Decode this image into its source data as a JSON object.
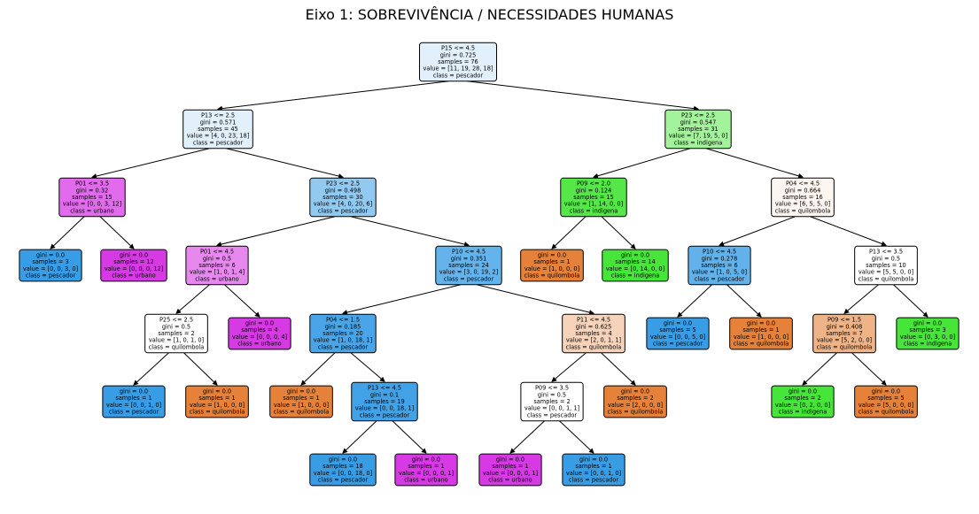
{
  "title": "Eixo 1: SOBREVIVÊNCIA / NECESSIDADES HUMANAS",
  "class_colors": {
    "pescador": "#399de5",
    "urbano": "#d739e5",
    "indigena": "#47e539",
    "quilombola": "#e58139"
  },
  "nodes": [
    {
      "id": "n0",
      "lines": [
        "P15 <= 4.5",
        "gini = 0.725",
        "samples = 76",
        "value = [11, 19, 28, 18]",
        "class = pescador"
      ],
      "class": "pescador",
      "purity": 0.15
    },
    {
      "id": "n1",
      "lines": [
        "P13 <= 2.5",
        "gini = 0.571",
        "samples = 45",
        "value = [4, 0, 23, 18]",
        "class = pescador"
      ],
      "class": "pescador",
      "purity": 0.15
    },
    {
      "id": "n2",
      "lines": [
        "P23 <= 2.5",
        "gini = 0.547",
        "samples = 31",
        "value = [7, 19, 5, 0]",
        "class = indigena"
      ],
      "class": "indigena",
      "purity": 0.5
    },
    {
      "id": "n3",
      "lines": [
        "P01 <= 3.5",
        "gini = 0.32",
        "samples = 15",
        "value = [0, 0, 3, 12]",
        "class = urbano"
      ],
      "class": "urbano",
      "purity": 0.75
    },
    {
      "id": "n4",
      "lines": [
        "P23 <= 2.5",
        "gini = 0.498",
        "samples = 30",
        "value = [4, 0, 20, 6]",
        "class = pescador"
      ],
      "class": "pescador",
      "purity": 0.55
    },
    {
      "id": "n5",
      "lines": [
        "P09 <= 2.0",
        "gini = 0.124",
        "samples = 15",
        "value = [1, 14, 0, 0]",
        "class = indigena"
      ],
      "class": "indigena",
      "purity": 0.93
    },
    {
      "id": "n6",
      "lines": [
        "P04 <= 4.5",
        "gini = 0.664",
        "samples = 16",
        "value = [6, 5, 5, 0]",
        "class = quilombola"
      ],
      "class": "quilombola",
      "purity": 0.08
    },
    {
      "id": "n7",
      "lines": [
        "gini = 0.0",
        "samples = 3",
        "value = [0, 0, 3, 0]",
        "class = pescador"
      ],
      "class": "pescador",
      "purity": 1.0
    },
    {
      "id": "n8",
      "lines": [
        "gini = 0.0",
        "samples = 12",
        "value = [0, 0, 0, 12]",
        "class = urbano"
      ],
      "class": "urbano",
      "purity": 1.0
    },
    {
      "id": "n9",
      "lines": [
        "P01 <= 4.5",
        "gini = 0.5",
        "samples = 6",
        "value = [1, 0, 1, 4]",
        "class = urbano"
      ],
      "class": "urbano",
      "purity": 0.6
    },
    {
      "id": "n10",
      "lines": [
        "P10 <= 4.5",
        "gini = 0.351",
        "samples = 24",
        "value = [3, 0, 19, 2]",
        "class = pescador"
      ],
      "class": "pescador",
      "purity": 0.78
    },
    {
      "id": "n11",
      "lines": [
        "gini = 0.0",
        "samples = 1",
        "value = [1, 0, 0, 0]",
        "class = quilombola"
      ],
      "class": "quilombola",
      "purity": 1.0
    },
    {
      "id": "n12",
      "lines": [
        "gini = 0.0",
        "samples = 14",
        "value = [0, 14, 0, 0]",
        "class = indigena"
      ],
      "class": "indigena",
      "purity": 1.0
    },
    {
      "id": "n13",
      "lines": [
        "P10 <= 4.5",
        "gini = 0.278",
        "samples = 6",
        "value = [1, 0, 5, 0]",
        "class = pescador"
      ],
      "class": "pescador",
      "purity": 0.8
    },
    {
      "id": "n14",
      "lines": [
        "P13 <= 3.5",
        "gini = 0.5",
        "samples = 10",
        "value = [5, 5, 0, 0]",
        "class = quilombola"
      ],
      "class": "quilombola",
      "purity": 0.0
    },
    {
      "id": "n15",
      "lines": [
        "P25 <= 2.5",
        "gini = 0.5",
        "samples = 2",
        "value = [1, 0, 1, 0]",
        "class = quilombola"
      ],
      "class": "quilombola",
      "purity": 0.0
    },
    {
      "id": "n16",
      "lines": [
        "gini = 0.0",
        "samples = 4",
        "value = [0, 0, 0, 4]",
        "class = urbano"
      ],
      "class": "urbano",
      "purity": 1.0
    },
    {
      "id": "n17",
      "lines": [
        "P04 <= 1.5",
        "gini = 0.185",
        "samples = 20",
        "value = [1, 0, 18, 1]",
        "class = pescador"
      ],
      "class": "pescador",
      "purity": 0.92
    },
    {
      "id": "n18",
      "lines": [
        "P11 <= 4.5",
        "gini = 0.625",
        "samples = 4",
        "value = [2, 0, 1, 1]",
        "class = quilombola"
      ],
      "class": "quilombola",
      "purity": 0.35
    },
    {
      "id": "n19",
      "lines": [
        "gini = 0.0",
        "samples = 5",
        "value = [0, 0, 5, 0]",
        "class = pescador"
      ],
      "class": "pescador",
      "purity": 1.0
    },
    {
      "id": "n20",
      "lines": [
        "gini = 0.0",
        "samples = 1",
        "value = [1, 0, 0, 0]",
        "class = quilombola"
      ],
      "class": "quilombola",
      "purity": 1.0
    },
    {
      "id": "n21",
      "lines": [
        "P09 <= 1.5",
        "gini = 0.408",
        "samples = 7",
        "value = [5, 2, 0, 0]",
        "class = quilombola"
      ],
      "class": "quilombola",
      "purity": 0.6
    },
    {
      "id": "n22",
      "lines": [
        "gini = 0.0",
        "samples = 3",
        "value = [0, 3, 0, 0]",
        "class = indigena"
      ],
      "class": "indigena",
      "purity": 1.0
    },
    {
      "id": "n23",
      "lines": [
        "gini = 0.0",
        "samples = 1",
        "value = [0, 0, 1, 0]",
        "class = pescador"
      ],
      "class": "pescador",
      "purity": 1.0
    },
    {
      "id": "n24",
      "lines": [
        "gini = 0.0",
        "samples = 1",
        "value = [1, 0, 0, 0]",
        "class = quilombola"
      ],
      "class": "quilombola",
      "purity": 1.0
    },
    {
      "id": "n25",
      "lines": [
        "gini = 0.0",
        "samples = 1",
        "value = [1, 0, 0, 0]",
        "class = quilombola"
      ],
      "class": "quilombola",
      "purity": 1.0
    },
    {
      "id": "n26",
      "lines": [
        "P13 <= 4.5",
        "gini = 0.1",
        "samples = 19",
        "value = [0, 0, 18, 1]",
        "class = pescador"
      ],
      "class": "pescador",
      "purity": 0.95
    },
    {
      "id": "n27",
      "lines": [
        "P09 <= 3.5",
        "gini = 0.5",
        "samples = 2",
        "value = [0, 0, 1, 1]",
        "class = pescador"
      ],
      "class": "pescador",
      "purity": 0.0
    },
    {
      "id": "n28",
      "lines": [
        "gini = 0.0",
        "samples = 2",
        "value = [2, 0, 0, 0]",
        "class = quilombola"
      ],
      "class": "quilombola",
      "purity": 1.0
    },
    {
      "id": "n29",
      "lines": [
        "gini = 0.0",
        "samples = 2",
        "value = [0, 2, 0, 0]",
        "class = indigena"
      ],
      "class": "indigena",
      "purity": 1.0
    },
    {
      "id": "n30",
      "lines": [
        "gini = 0.0",
        "samples = 5",
        "value = [5, 0, 0, 0]",
        "class = quilombola"
      ],
      "class": "quilombola",
      "purity": 1.0
    },
    {
      "id": "n31",
      "lines": [
        "gini = 0.0",
        "samples = 18",
        "value = [0, 0, 18, 0]",
        "class = pescador"
      ],
      "class": "pescador",
      "purity": 1.0
    },
    {
      "id": "n32",
      "lines": [
        "gini = 0.0",
        "samples = 1",
        "value = [0, 0, 0, 1]",
        "class = urbano"
      ],
      "class": "urbano",
      "purity": 1.0
    },
    {
      "id": "n33",
      "lines": [
        "gini = 0.0",
        "samples = 1",
        "value = [0, 0, 0, 1]",
        "class = urbano"
      ],
      "class": "urbano",
      "purity": 1.0
    },
    {
      "id": "n34",
      "lines": [
        "gini = 0.0",
        "samples = 1",
        "value = [0, 0, 1, 0]",
        "class = pescador"
      ],
      "class": "pescador",
      "purity": 1.0
    }
  ],
  "edges": [
    [
      "n0",
      "n1"
    ],
    [
      "n0",
      "n2"
    ],
    [
      "n1",
      "n3"
    ],
    [
      "n1",
      "n4"
    ],
    [
      "n2",
      "n5"
    ],
    [
      "n2",
      "n6"
    ],
    [
      "n3",
      "n7"
    ],
    [
      "n3",
      "n8"
    ],
    [
      "n4",
      "n9"
    ],
    [
      "n4",
      "n10"
    ],
    [
      "n5",
      "n11"
    ],
    [
      "n5",
      "n12"
    ],
    [
      "n6",
      "n13"
    ],
    [
      "n6",
      "n14"
    ],
    [
      "n9",
      "n15"
    ],
    [
      "n9",
      "n16"
    ],
    [
      "n10",
      "n17"
    ],
    [
      "n10",
      "n18"
    ],
    [
      "n13",
      "n19"
    ],
    [
      "n13",
      "n20"
    ],
    [
      "n14",
      "n21"
    ],
    [
      "n14",
      "n22"
    ],
    [
      "n15",
      "n23"
    ],
    [
      "n15",
      "n24"
    ],
    [
      "n17",
      "n25"
    ],
    [
      "n17",
      "n26"
    ],
    [
      "n18",
      "n27"
    ],
    [
      "n18",
      "n28"
    ],
    [
      "n21",
      "n29"
    ],
    [
      "n21",
      "n30"
    ],
    [
      "n26",
      "n31"
    ],
    [
      "n26",
      "n32"
    ],
    [
      "n27",
      "n33"
    ],
    [
      "n27",
      "n34"
    ]
  ]
}
